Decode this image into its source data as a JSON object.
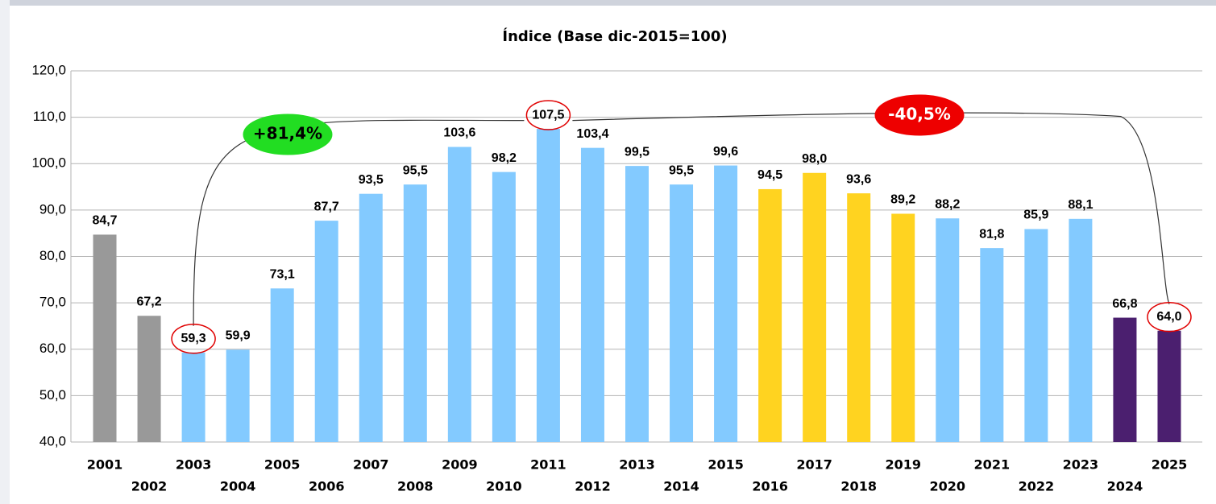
{
  "chart_data": {
    "type": "bar",
    "title": "Índice (Base dic-2015=100)",
    "categories": [
      "2001",
      "2002",
      "2003",
      "2004",
      "2005",
      "2006",
      "2007",
      "2008",
      "2009",
      "2010",
      "2011",
      "2012",
      "2013",
      "2014",
      "2015",
      "2016",
      "2017",
      "2018",
      "2019",
      "2020",
      "2021",
      "2022",
      "2023",
      "2024",
      "2025"
    ],
    "values": [
      84.7,
      67.2,
      59.3,
      59.9,
      73.1,
      87.7,
      93.5,
      95.5,
      103.6,
      98.2,
      107.5,
      103.4,
      99.5,
      95.5,
      99.6,
      94.5,
      98.0,
      93.6,
      89.2,
      88.2,
      81.8,
      85.9,
      88.1,
      66.8,
      64.0
    ],
    "value_labels": [
      "84,7",
      "67,2",
      "59,3",
      "59,9",
      "73,1",
      "87,7",
      "93,5",
      "95,5",
      "103,6",
      "98,2",
      "107,5",
      "103,4",
      "99,5",
      "95,5",
      "99,6",
      "94,5",
      "98,0",
      "93,6",
      "89,2",
      "88,2",
      "81,8",
      "85,9",
      "88,1",
      "66,8",
      "64,0"
    ],
    "colors": [
      "#999999",
      "#999999",
      "#83caff",
      "#83caff",
      "#83caff",
      "#83caff",
      "#83caff",
      "#83caff",
      "#83caff",
      "#83caff",
      "#83caff",
      "#83caff",
      "#83caff",
      "#83caff",
      "#83caff",
      "#ffd320",
      "#ffd320",
      "#ffd320",
      "#ffd320",
      "#83caff",
      "#83caff",
      "#83caff",
      "#83caff",
      "#4b1f6f",
      "#4b1f6f"
    ],
    "ylim": [
      40,
      120
    ],
    "yticks": [
      {
        "value": 40,
        "label": "40,0"
      },
      {
        "value": 50,
        "label": "50,0"
      },
      {
        "value": 60,
        "label": "60,0"
      },
      {
        "value": 70,
        "label": "70,0"
      },
      {
        "value": 80,
        "label": "80,0"
      },
      {
        "value": 90,
        "label": "90,0"
      },
      {
        "value": 100,
        "label": "100,0"
      },
      {
        "value": 110,
        "label": "110,0"
      },
      {
        "value": 120,
        "label": "120,0"
      }
    ],
    "grid": true,
    "highlight_indices": [
      2,
      10,
      24
    ],
    "annotations": [
      {
        "text": "+81,4%",
        "color": "#22dd22"
      },
      {
        "text": "-40,5%",
        "color": "#ee0000"
      }
    ]
  }
}
